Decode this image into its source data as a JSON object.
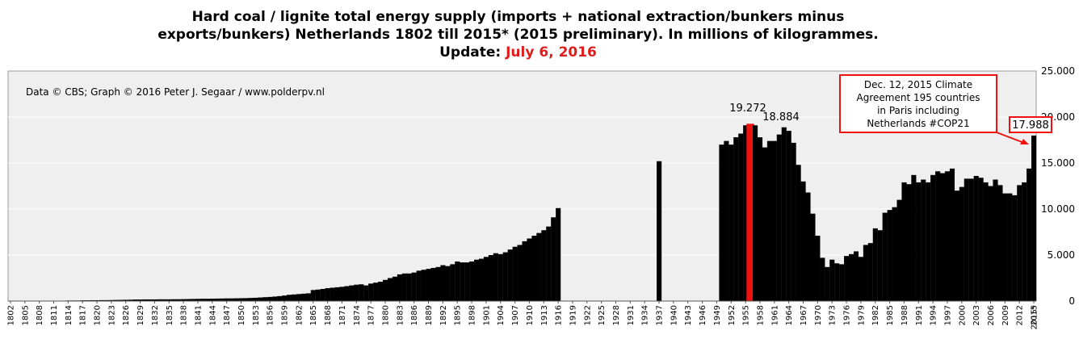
{
  "title": {
    "line1": "Hard coal / lignite total energy supply (imports + national extraction/bunkers minus",
    "line2": "exports/bunkers) Netherlands 1802 till 2015* (2015 preliminary). In millions of kilogrammes.",
    "update_label": "Update: ",
    "update_date": "July 6, 2016"
  },
  "credit": "Data © CBS; Graph © 2016 Peter J. Segaar / www.polderpv.nl",
  "colors": {
    "bar": "#000000",
    "highlight": "#ee1111",
    "plot_bg": "#efefef",
    "grid": "#ffffff",
    "title_date": "#e21b1b"
  },
  "annotations": {
    "peak_label": "19.272",
    "second_label": "18.884",
    "last_label": "17.988",
    "callout": [
      "Dec. 12, 2015 Climate",
      "Agreement 195 countries",
      "in Paris including",
      "Netherlands #COP21"
    ]
  },
  "chart_data": {
    "type": "bar",
    "x_start": 1802,
    "x_end": 2015,
    "last_label_suffix": "*",
    "tick_every": 3,
    "ylim": [
      0,
      25000
    ],
    "yticks": [
      0,
      5000,
      10000,
      15000,
      20000,
      25000
    ],
    "ytick_labels": [
      "0",
      "5.000",
      "10.000",
      "15.000",
      "20.000",
      "25.000"
    ],
    "y_axis_side": "right",
    "highlight_year": 1956,
    "series": [
      {
        "values": [
          {
            "x": 1802,
            "y": 30
          },
          {
            "x": 1803,
            "y": 30
          },
          {
            "x": 1804,
            "y": 30
          },
          {
            "x": 1805,
            "y": 30
          },
          {
            "x": 1806,
            "y": 30
          },
          {
            "x": 1807,
            "y": 30
          },
          {
            "x": 1808,
            "y": 30
          },
          {
            "x": 1809,
            "y": 30
          },
          {
            "x": 1810,
            "y": 30
          },
          {
            "x": 1811,
            "y": 30
          },
          {
            "x": 1812,
            "y": 30
          },
          {
            "x": 1813,
            "y": 30
          },
          {
            "x": 1814,
            "y": 60
          },
          {
            "x": 1815,
            "y": 60
          },
          {
            "x": 1816,
            "y": 60
          },
          {
            "x": 1817,
            "y": 80
          },
          {
            "x": 1818,
            "y": 80
          },
          {
            "x": 1819,
            "y": 90
          },
          {
            "x": 1820,
            "y": 90
          },
          {
            "x": 1821,
            "y": 100
          },
          {
            "x": 1822,
            "y": 100
          },
          {
            "x": 1823,
            "y": 110
          },
          {
            "x": 1824,
            "y": 120
          },
          {
            "x": 1825,
            "y": 130
          },
          {
            "x": 1826,
            "y": 140
          },
          {
            "x": 1827,
            "y": 150
          },
          {
            "x": 1828,
            "y": 170
          },
          {
            "x": 1829,
            "y": 170
          },
          {
            "x": 1830,
            "y": 180
          },
          {
            "x": 1831,
            "y": 180
          },
          {
            "x": 1832,
            "y": 180
          },
          {
            "x": 1833,
            "y": 190
          },
          {
            "x": 1834,
            "y": 190
          },
          {
            "x": 1835,
            "y": 190
          },
          {
            "x": 1836,
            "y": 200
          },
          {
            "x": 1837,
            "y": 200
          },
          {
            "x": 1838,
            "y": 210
          },
          {
            "x": 1839,
            "y": 220
          },
          {
            "x": 1840,
            "y": 230
          },
          {
            "x": 1841,
            "y": 240
          },
          {
            "x": 1842,
            "y": 250
          },
          {
            "x": 1843,
            "y": 250
          },
          {
            "x": 1844,
            "y": 260
          },
          {
            "x": 1845,
            "y": 270
          },
          {
            "x": 1846,
            "y": 280
          },
          {
            "x": 1847,
            "y": 290
          },
          {
            "x": 1848,
            "y": 290
          },
          {
            "x": 1849,
            "y": 300
          },
          {
            "x": 1850,
            "y": 310
          },
          {
            "x": 1851,
            "y": 320
          },
          {
            "x": 1852,
            "y": 340
          },
          {
            "x": 1853,
            "y": 360
          },
          {
            "x": 1854,
            "y": 390
          },
          {
            "x": 1855,
            "y": 420
          },
          {
            "x": 1856,
            "y": 450
          },
          {
            "x": 1857,
            "y": 490
          },
          {
            "x": 1858,
            "y": 540
          },
          {
            "x": 1859,
            "y": 600
          },
          {
            "x": 1860,
            "y": 680
          },
          {
            "x": 1861,
            "y": 720
          },
          {
            "x": 1862,
            "y": 760
          },
          {
            "x": 1863,
            "y": 800
          },
          {
            "x": 1864,
            "y": 840
          },
          {
            "x": 1865,
            "y": 1200
          },
          {
            "x": 1866,
            "y": 1250
          },
          {
            "x": 1867,
            "y": 1320
          },
          {
            "x": 1868,
            "y": 1400
          },
          {
            "x": 1869,
            "y": 1450
          },
          {
            "x": 1870,
            "y": 1500
          },
          {
            "x": 1871,
            "y": 1550
          },
          {
            "x": 1872,
            "y": 1620
          },
          {
            "x": 1873,
            "y": 1700
          },
          {
            "x": 1874,
            "y": 1780
          },
          {
            "x": 1875,
            "y": 1820
          },
          {
            "x": 1876,
            "y": 1700
          },
          {
            "x": 1877,
            "y": 1900
          },
          {
            "x": 1878,
            "y": 2000
          },
          {
            "x": 1879,
            "y": 2100
          },
          {
            "x": 1880,
            "y": 2300
          },
          {
            "x": 1881,
            "y": 2500
          },
          {
            "x": 1882,
            "y": 2650
          },
          {
            "x": 1883,
            "y": 2900
          },
          {
            "x": 1884,
            "y": 3000
          },
          {
            "x": 1885,
            "y": 3000
          },
          {
            "x": 1886,
            "y": 3100
          },
          {
            "x": 1887,
            "y": 3300
          },
          {
            "x": 1888,
            "y": 3400
          },
          {
            "x": 1889,
            "y": 3500
          },
          {
            "x": 1890,
            "y": 3600
          },
          {
            "x": 1891,
            "y": 3700
          },
          {
            "x": 1892,
            "y": 3900
          },
          {
            "x": 1893,
            "y": 3800
          },
          {
            "x": 1894,
            "y": 4000
          },
          {
            "x": 1895,
            "y": 4300
          },
          {
            "x": 1896,
            "y": 4200
          },
          {
            "x": 1897,
            "y": 4200
          },
          {
            "x": 1898,
            "y": 4300
          },
          {
            "x": 1899,
            "y": 4500
          },
          {
            "x": 1900,
            "y": 4600
          },
          {
            "x": 1901,
            "y": 4800
          },
          {
            "x": 1902,
            "y": 5000
          },
          {
            "x": 1903,
            "y": 5200
          },
          {
            "x": 1904,
            "y": 5100
          },
          {
            "x": 1905,
            "y": 5300
          },
          {
            "x": 1906,
            "y": 5600
          },
          {
            "x": 1907,
            "y": 5900
          },
          {
            "x": 1908,
            "y": 6100
          },
          {
            "x": 1909,
            "y": 6500
          },
          {
            "x": 1910,
            "y": 6800
          },
          {
            "x": 1911,
            "y": 7100
          },
          {
            "x": 1912,
            "y": 7400
          },
          {
            "x": 1913,
            "y": 7700
          },
          {
            "x": 1914,
            "y": 8100
          },
          {
            "x": 1915,
            "y": 9100
          },
          {
            "x": 1916,
            "y": 10100
          },
          {
            "x": 1937,
            "y": 15200
          },
          {
            "x": 1950,
            "y": 17000
          },
          {
            "x": 1951,
            "y": 17400
          },
          {
            "x": 1952,
            "y": 17000
          },
          {
            "x": 1953,
            "y": 17800
          },
          {
            "x": 1954,
            "y": 18200
          },
          {
            "x": 1955,
            "y": 19100
          },
          {
            "x": 1956,
            "y": 19272
          },
          {
            "x": 1957,
            "y": 19100
          },
          {
            "x": 1958,
            "y": 17800
          },
          {
            "x": 1959,
            "y": 16700
          },
          {
            "x": 1960,
            "y": 17400
          },
          {
            "x": 1961,
            "y": 17400
          },
          {
            "x": 1962,
            "y": 18100
          },
          {
            "x": 1963,
            "y": 18884
          },
          {
            "x": 1964,
            "y": 18500
          },
          {
            "x": 1965,
            "y": 17200
          },
          {
            "x": 1966,
            "y": 14800
          },
          {
            "x": 1967,
            "y": 13000
          },
          {
            "x": 1968,
            "y": 11800
          },
          {
            "x": 1969,
            "y": 9500
          },
          {
            "x": 1970,
            "y": 7100
          },
          {
            "x": 1971,
            "y": 4700
          },
          {
            "x": 1972,
            "y": 3700
          },
          {
            "x": 1973,
            "y": 4500
          },
          {
            "x": 1974,
            "y": 4100
          },
          {
            "x": 1975,
            "y": 4000
          },
          {
            "x": 1976,
            "y": 4900
          },
          {
            "x": 1977,
            "y": 5100
          },
          {
            "x": 1978,
            "y": 5400
          },
          {
            "x": 1979,
            "y": 4800
          },
          {
            "x": 1980,
            "y": 6100
          },
          {
            "x": 1981,
            "y": 6300
          },
          {
            "x": 1982,
            "y": 7900
          },
          {
            "x": 1983,
            "y": 7700
          },
          {
            "x": 1984,
            "y": 9600
          },
          {
            "x": 1985,
            "y": 9900
          },
          {
            "x": 1986,
            "y": 10200
          },
          {
            "x": 1987,
            "y": 11000
          },
          {
            "x": 1988,
            "y": 12900
          },
          {
            "x": 1989,
            "y": 12700
          },
          {
            "x": 1990,
            "y": 13700
          },
          {
            "x": 1991,
            "y": 12900
          },
          {
            "x": 1992,
            "y": 13200
          },
          {
            "x": 1993,
            "y": 12900
          },
          {
            "x": 1994,
            "y": 13700
          },
          {
            "x": 1995,
            "y": 14100
          },
          {
            "x": 1996,
            "y": 13900
          },
          {
            "x": 1997,
            "y": 14100
          },
          {
            "x": 1998,
            "y": 14400
          },
          {
            "x": 1999,
            "y": 12000
          },
          {
            "x": 2000,
            "y": 12400
          },
          {
            "x": 2001,
            "y": 13300
          },
          {
            "x": 2002,
            "y": 13300
          },
          {
            "x": 2003,
            "y": 13600
          },
          {
            "x": 2004,
            "y": 13400
          },
          {
            "x": 2005,
            "y": 12900
          },
          {
            "x": 2006,
            "y": 12500
          },
          {
            "x": 2007,
            "y": 13200
          },
          {
            "x": 2008,
            "y": 12600
          },
          {
            "x": 2009,
            "y": 11700
          },
          {
            "x": 2010,
            "y": 11700
          },
          {
            "x": 2011,
            "y": 11500
          },
          {
            "x": 2012,
            "y": 12600
          },
          {
            "x": 2013,
            "y": 12900
          },
          {
            "x": 2014,
            "y": 14400
          },
          {
            "x": 2015,
            "y": 17988
          }
        ]
      }
    ]
  }
}
